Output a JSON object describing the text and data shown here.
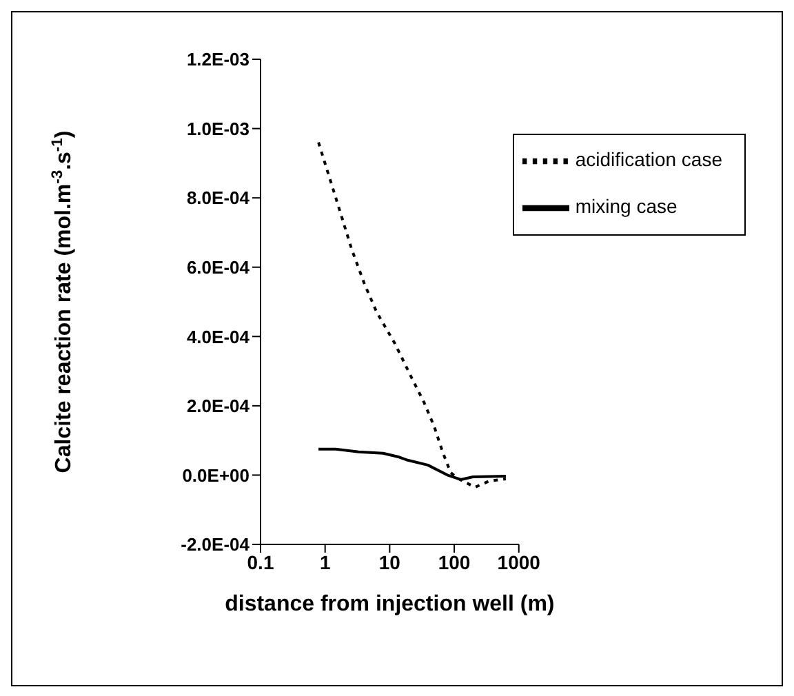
{
  "chart_data": {
    "type": "line",
    "xlabel": "distance from injection well (m)",
    "ylabel": "Calcite reaction rate (mol.m$^{-3}$.s$^{-1}$)",
    "log": "x",
    "xlim": [
      0.1,
      1000
    ],
    "xticks": [
      0.1,
      1,
      10,
      100,
      1000
    ],
    "ylim": [
      -0.0002,
      0.0012
    ],
    "yticks": [
      {
        "value": -0.0002,
        "label": "-2.0E-04"
      },
      {
        "value": 0,
        "label": "0.0E+00"
      },
      {
        "value": 0.0002,
        "label": "2.0E-04"
      },
      {
        "value": 0.0004,
        "label": "4.0E-04"
      },
      {
        "value": 0.0006,
        "label": "6.0E-04"
      },
      {
        "value": 0.0008,
        "label": "8.0E-04"
      },
      {
        "value": 0.001,
        "label": "1.0E-03"
      },
      {
        "value": 0.0012,
        "label": "1.2E-03"
      }
    ],
    "grid": false,
    "legend": "top right",
    "marker": "none",
    "series": [
      {
        "name": "mixing case",
        "color": "#000000",
        "line_style": "solid",
        "x": [
          0.79,
          1.46,
          3.3,
          7.9,
          14,
          19,
          39,
          81,
          126,
          195,
          630
        ],
        "values": [
          7.5e-05,
          7.5e-05,
          6.7e-05,
          6.3e-05,
          5.2e-05,
          4.3e-05,
          2.9e-05,
          -1e-06,
          -1.3e-05,
          -5e-06,
          -3e-06
        ]
      },
      {
        "name": "acidification case",
        "color": "#000000",
        "line_style": "dashed",
        "x": [
          0.79,
          1.41,
          2.6,
          4.1,
          6.3,
          12,
          22,
          34,
          49,
          66,
          88,
          117,
          210,
          350,
          630
        ],
        "values": [
          0.00096,
          0.00081,
          0.00065,
          0.00055,
          0.00047,
          0.00038,
          0.00028,
          0.00021,
          0.00014,
          6.7e-05,
          7e-06,
          -1.1e-05,
          -3.5e-05,
          -1.7e-05,
          -1.1e-05
        ]
      }
    ]
  }
}
